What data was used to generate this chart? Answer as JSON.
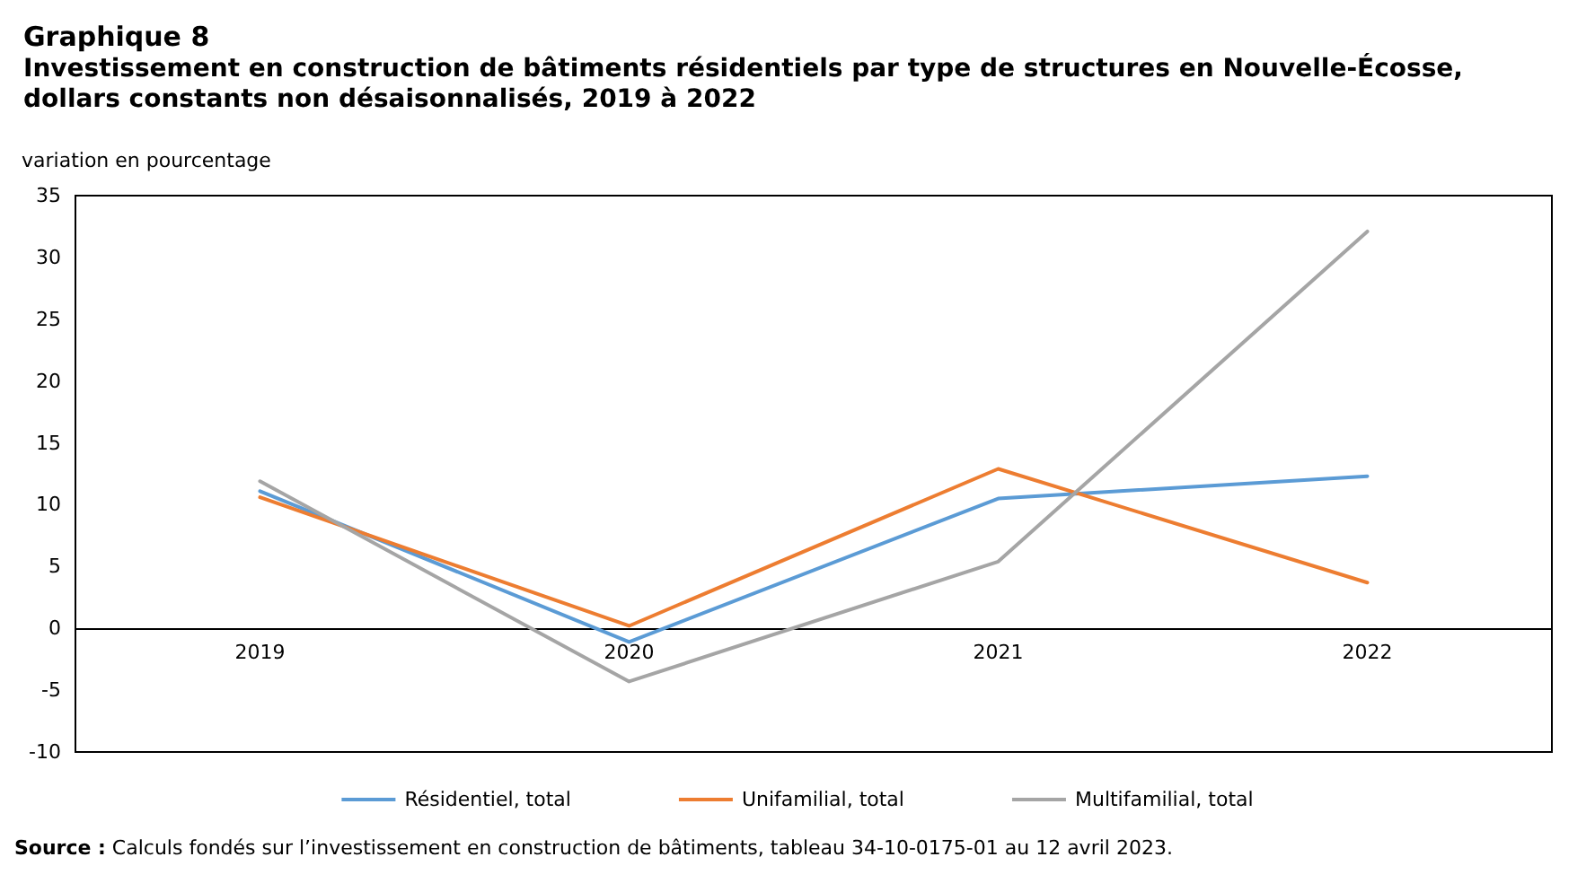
{
  "chart_data": {
    "type": "line",
    "title": "Graphique 8",
    "subtitle": "Investissement en construction de bâtiments résidentiels par type de structures en Nouvelle-Écosse,\ndollars constants non désaisonnalisés, 2019 à 2022",
    "ylabel": "variation en pourcentage",
    "categories": [
      "2019",
      "2020",
      "2021",
      "2022"
    ],
    "series": [
      {
        "name": "Résidentiel, total",
        "color": "#5b9bd5",
        "values": [
          11.1,
          -1.1,
          10.5,
          12.3
        ]
      },
      {
        "name": "Unifamilial, total",
        "color": "#ed7d31",
        "values": [
          10.6,
          0.2,
          12.9,
          3.7
        ]
      },
      {
        "name": "Multifamilial, total",
        "color": "#a5a5a5",
        "values": [
          11.9,
          -4.3,
          5.4,
          32.1
        ]
      }
    ],
    "ylim": [
      -10,
      35
    ],
    "yticks": [
      -10,
      -5,
      0,
      5,
      10,
      15,
      20,
      25,
      30,
      35
    ],
    "legend": "bottom",
    "marker": "none",
    "line_style": "solid",
    "annotations": [
      "Source : Calculs fondés sur l’investissement en construction de bâtiments, tableau 34-10-0175-01 au 12 avril 2023."
    ]
  }
}
